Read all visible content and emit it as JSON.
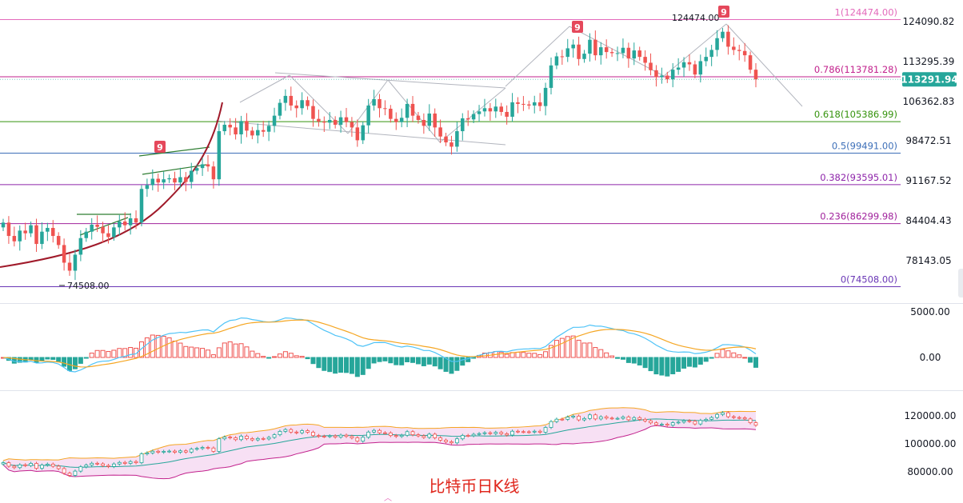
{
  "chart_data": {
    "type": "candlestick",
    "caption": "比特币日K线",
    "main": {
      "price_axis_ticks": [
        "124090.82",
        "113295.39",
        "106362.83",
        "98472.51",
        "91167.52",
        "84404.43",
        "78143.05"
      ],
      "current_price": "113291.94",
      "swing_low_label": "74508.00",
      "swing_high_label": "124474.00",
      "fib_levels": [
        {
          "ratio": 1,
          "price": 124474.0,
          "label": "1(124474.00)",
          "color": "#e36abb"
        },
        {
          "ratio": 0.786,
          "price": 113781.28,
          "label": "0.786(113781.28)",
          "color": "#c2228d"
        },
        {
          "ratio": 0.618,
          "price": 105386.99,
          "label": "0.618(105386.99)",
          "color": "#35930d"
        },
        {
          "ratio": 0.5,
          "price": 99491.0,
          "label": "0.5(99491.00)",
          "color": "#3d6fb8"
        },
        {
          "ratio": 0.382,
          "price": 93595.01,
          "label": "0.382(93595.01)",
          "color": "#8e24aa"
        },
        {
          "ratio": 0.236,
          "price": 86299.98,
          "label": "0.236(86299.98)",
          "color": "#a0229c"
        },
        {
          "ratio": 0,
          "price": 74508.0,
          "label": "0(74508.00)",
          "color": "#6a37b6"
        }
      ],
      "sequence_marks": [
        "9",
        "9",
        "9"
      ],
      "closes": [
        86500,
        84000,
        83000,
        85000,
        84500,
        86000,
        82500,
        84800,
        85500,
        84000,
        82300,
        79000,
        77500,
        80500,
        83600,
        84800,
        86100,
        85700,
        84500,
        83800,
        85600,
        86700,
        86000,
        87300,
        86500,
        92800,
        93500,
        94700,
        94000,
        94600,
        94800,
        94000,
        95000,
        94100,
        96200,
        96700,
        97400,
        97000,
        94600,
        103600,
        104800,
        104300,
        103000,
        105500,
        103700,
        102800,
        103800,
        103500,
        104600,
        106500,
        108900,
        110200,
        108400,
        107900,
        109400,
        108300,
        105900,
        105400,
        105200,
        105700,
        104800,
        106200,
        105300,
        104300,
        101900,
        104700,
        108400,
        109600,
        107900,
        107800,
        105900,
        105300,
        106100,
        108700,
        106500,
        105700,
        104600,
        106900,
        104300,
        102600,
        101500,
        100700,
        103600,
        106000,
        105800,
        106800,
        107300,
        107900,
        107300,
        108200,
        107200,
        106300,
        109000,
        108700,
        108600,
        108400,
        109000,
        108300,
        111700,
        115900,
        117600,
        117500,
        119100,
        119800,
        117100,
        118100,
        120700,
        117800,
        119300,
        118400,
        118200,
        118200,
        119200,
        117200,
        118700,
        117500,
        116400,
        115000,
        113700,
        114000,
        113300,
        115100,
        115500,
        116500,
        116100,
        114200,
        116700,
        117500,
        118800,
        121000,
        122200,
        119400,
        118800,
        118600,
        117800,
        115100,
        113291.94
      ],
      "moving_average_arc": "unlabeled red curve"
    },
    "macd": {
      "axis_ticks": [
        "5000.00",
        "0.00"
      ]
    },
    "bands": {
      "axis_ticks": [
        "120000.00",
        "100000.00",
        "80000.00"
      ]
    }
  }
}
